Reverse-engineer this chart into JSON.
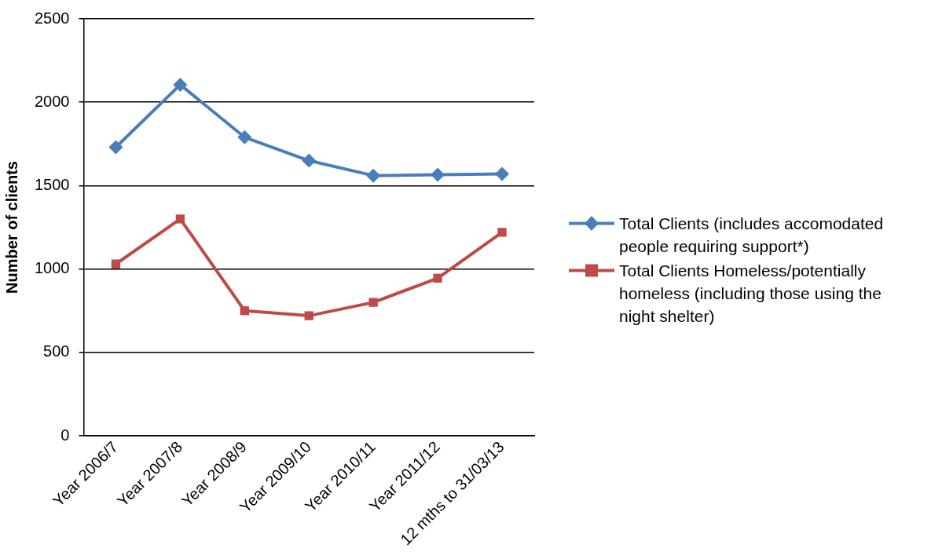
{
  "chart_data": {
    "type": "line",
    "ylabel": "Number of clients",
    "categories": [
      "Year 2006/7",
      "Year 2007/8",
      "Year 2008/9",
      "Year 2009/10",
      "Year 2010/11",
      "Year 2011/12",
      "12 mths to 31/03/13"
    ],
    "series": [
      {
        "name": "Total Clients (includes accomodated people requiring support*)",
        "color": "#4a7ebb",
        "marker": "diamond",
        "values": [
          1730,
          2105,
          1790,
          1650,
          1560,
          1565,
          1570
        ]
      },
      {
        "name": "Total Clients Homeless/potentially homeless (including those using the night shelter)",
        "color": "#be4b48",
        "marker": "square",
        "values": [
          1030,
          1300,
          750,
          720,
          800,
          945,
          1220
        ]
      }
    ],
    "ylim": [
      0,
      2500
    ],
    "yticks": [
      0,
      500,
      1000,
      1500,
      2000,
      2500
    ],
    "grid": "y",
    "legend": "right",
    "line_style": "solid"
  }
}
